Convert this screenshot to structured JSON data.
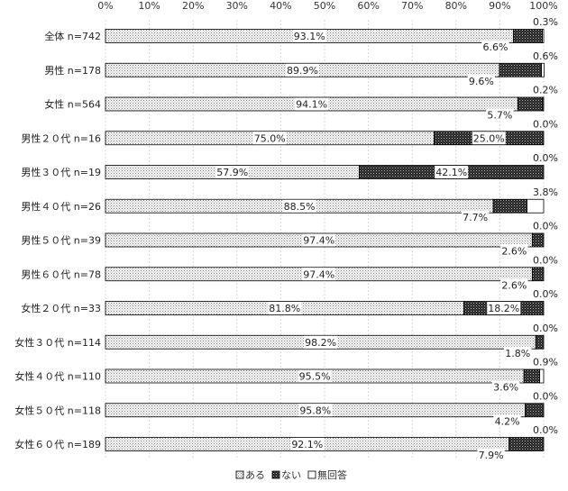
{
  "chart_data": {
    "type": "bar",
    "orientation": "horizontal",
    "stacked": true,
    "percent": true,
    "xlim": [
      0,
      100
    ],
    "xticks": [
      "0%",
      "10%",
      "20%",
      "30%",
      "40%",
      "50%",
      "60%",
      "70%",
      "80%",
      "90%",
      "100%"
    ],
    "categories": [
      "全体 n=742",
      "男性 n=178",
      "女性 n=564",
      "男性２０代 n=16",
      "男性３０代 n=19",
      "男性４０代 n=26",
      "男性５０代 n=39",
      "男性６０代 n=78",
      "女性２０代 n=33",
      "女性３０代 n=114",
      "女性４０代 n=110",
      "女性５０代 n=118",
      "女性６０代 n=189"
    ],
    "series": [
      {
        "name": "ある",
        "values": [
          93.1,
          89.9,
          94.1,
          75.0,
          57.9,
          88.5,
          97.4,
          97.4,
          81.8,
          98.2,
          95.5,
          95.8,
          92.1
        ],
        "labels": [
          "93.1%",
          "89.9%",
          "94.1%",
          "75.0%",
          "57.9%",
          "88.5%",
          "97.4%",
          "97.4%",
          "81.8%",
          "98.2%",
          "95.5%",
          "95.8%",
          "92.1%"
        ]
      },
      {
        "name": "ない",
        "values": [
          6.6,
          9.6,
          5.7,
          25.0,
          42.1,
          7.7,
          2.6,
          2.6,
          18.2,
          1.8,
          3.6,
          4.2,
          7.9
        ],
        "labels": [
          "6.6%",
          "9.6%",
          "5.7%",
          "25.0%",
          "42.1%",
          "7.7%",
          "2.6%",
          "2.6%",
          "18.2%",
          "1.8%",
          "3.6%",
          "4.2%",
          "7.9%"
        ]
      },
      {
        "name": "無回答",
        "values": [
          0.3,
          0.6,
          0.2,
          0.0,
          0.0,
          3.8,
          0.0,
          0.0,
          0.0,
          0.0,
          0.9,
          0.0,
          0.0
        ],
        "labels": [
          "0.3%",
          "0.6%",
          "0.2%",
          "0.0%",
          "0.0%",
          "3.8%",
          "0.0%",
          "0.0%",
          "0.0%",
          "0.0%",
          "0.9%",
          "0.0%",
          "0.0%"
        ]
      }
    ],
    "legend": [
      "ある",
      "ない",
      "無回答"
    ],
    "legend_position": "bottom",
    "grid": true
  }
}
